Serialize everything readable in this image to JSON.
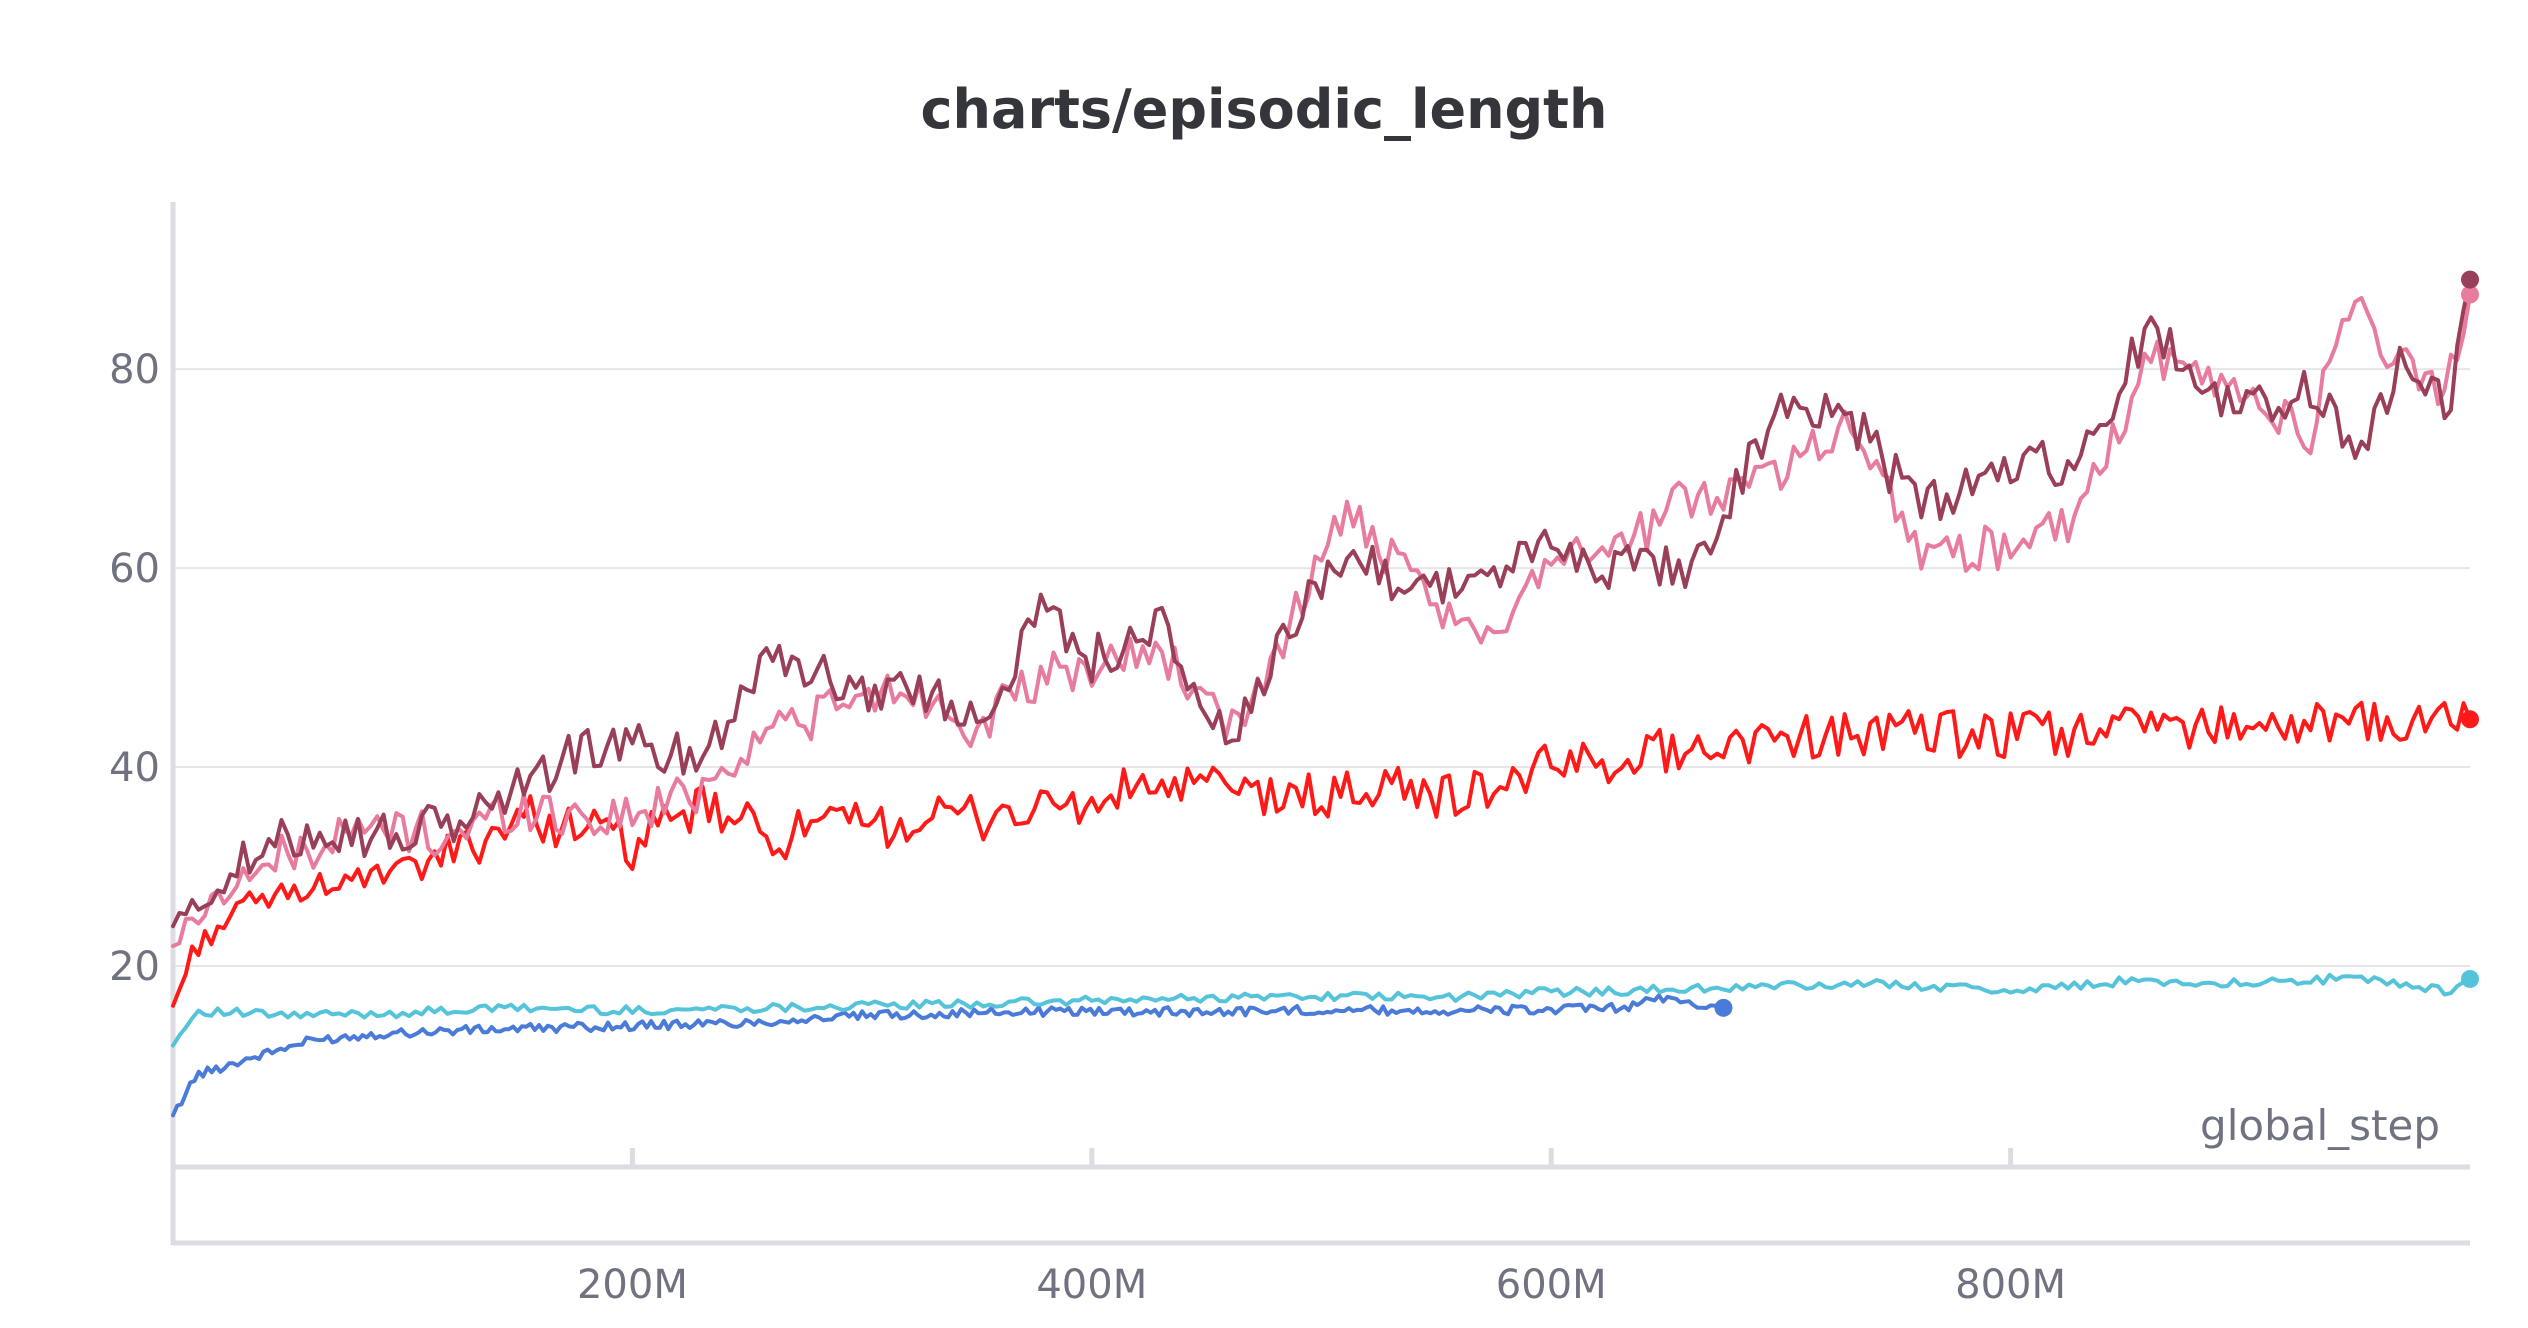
{
  "chart_data": {
    "type": "line",
    "title": "charts/episodic_length",
    "xlabel": "global_step",
    "ylabel": "",
    "xlim": [
      0,
      1000000000
    ],
    "ylim": [
      0,
      97
    ],
    "x_ticks": [
      {
        "value": 200000000,
        "label": "200M"
      },
      {
        "value": 400000000,
        "label": "400M"
      },
      {
        "value": 600000000,
        "label": "600M"
      },
      {
        "value": 800000000,
        "label": "800M"
      }
    ],
    "y_ticks": [
      {
        "value": 20,
        "label": "20"
      },
      {
        "value": 40,
        "label": "40"
      },
      {
        "value": 60,
        "label": "60"
      },
      {
        "value": 80,
        "label": "80"
      }
    ],
    "grid": true,
    "legend": "none",
    "series": [
      {
        "color": "#4a7bd9",
        "x": [
          0,
          10000000,
          30000000,
          60000000,
          90000000,
          120000000,
          150000000,
          200000000,
          250000000,
          300000000,
          350000000,
          400000000,
          450000000,
          500000000,
          550000000,
          600000000,
          630000000,
          650000000,
          665000000,
          675000000
        ],
        "y": [
          5,
          9,
          10.5,
          12.5,
          13.2,
          13.5,
          13.7,
          14,
          14.3,
          15,
          15.3,
          15.5,
          15.4,
          15.6,
          15.5,
          15.6,
          15.8,
          16.8,
          16.1,
          15.8
        ]
      },
      {
        "color": "#55c3d9",
        "x": [
          0,
          10000000,
          50000000,
          100000000,
          150000000,
          200000000,
          250000000,
          300000000,
          350000000,
          400000000,
          450000000,
          500000000,
          550000000,
          600000000,
          650000000,
          700000000,
          750000000,
          800000000,
          850000000,
          900000000,
          950000000,
          990000000,
          1000000000
        ],
        "y": [
          12,
          15.5,
          15,
          15.3,
          15.8,
          15.5,
          15.8,
          16,
          16.2,
          16.5,
          16.8,
          17,
          16.8,
          17.4,
          17.6,
          18,
          18.2,
          17.5,
          18.5,
          18.3,
          18.8,
          17.5,
          18.7
        ]
      },
      {
        "color": "#ff1a1a",
        "x": [
          0,
          10000000,
          30000000,
          60000000,
          90000000,
          120000000,
          150000000,
          180000000,
          200000000,
          230000000,
          260000000,
          290000000,
          320000000,
          350000000,
          380000000,
          400000000,
          420000000,
          450000000,
          480000000,
          500000000,
          530000000,
          560000000,
          600000000,
          630000000,
          660000000,
          700000000,
          750000000,
          800000000,
          850000000,
          900000000,
          950000000,
          990000000,
          1000000000
        ],
        "y": [
          16,
          22,
          26,
          28,
          29,
          31,
          35,
          34,
          32,
          36,
          33,
          34,
          34.5,
          35,
          36,
          36,
          38,
          38,
          37,
          37,
          38,
          37,
          40,
          41,
          42,
          43,
          43.5,
          43,
          44,
          44.5,
          44,
          45,
          44.8
        ]
      },
      {
        "color": "#e87c9e",
        "x": [
          0,
          10000000,
          30000000,
          60000000,
          90000000,
          120000000,
          150000000,
          180000000,
          200000000,
          230000000,
          260000000,
          290000000,
          320000000,
          350000000,
          380000000,
          400000000,
          430000000,
          460000000,
          490000000,
          510000000,
          540000000,
          570000000,
          600000000,
          630000000,
          660000000,
          700000000,
          730000000,
          760000000,
          800000000,
          830000000,
          860000000,
          900000000,
          930000000,
          950000000,
          970000000,
          990000000,
          1000000000
        ],
        "y": [
          22,
          25,
          29,
          32,
          34,
          33,
          36,
          35,
          35,
          38,
          44,
          46,
          48,
          44,
          49,
          50,
          52,
          43,
          56,
          66,
          58,
          52,
          62,
          62,
          67,
          70,
          75,
          62,
          62,
          65,
          81,
          78,
          73,
          88,
          80,
          78,
          87.5
        ]
      },
      {
        "color": "#9a3f58",
        "x": [
          0,
          10000000,
          30000000,
          60000000,
          90000000,
          120000000,
          150000000,
          180000000,
          200000000,
          230000000,
          260000000,
          290000000,
          320000000,
          350000000,
          380000000,
          400000000,
          430000000,
          460000000,
          490000000,
          510000000,
          540000000,
          570000000,
          600000000,
          630000000,
          660000000,
          700000000,
          730000000,
          760000000,
          800000000,
          830000000,
          860000000,
          900000000,
          930000000,
          950000000,
          970000000,
          990000000,
          1000000000
        ],
        "y": [
          24,
          26,
          30,
          34,
          33,
          34,
          38,
          42,
          42,
          41,
          52,
          48,
          48,
          45,
          56,
          51,
          54,
          42,
          55,
          62,
          58,
          59,
          62,
          60,
          60,
          76,
          75,
          66,
          70,
          71,
          84,
          76,
          78,
          72,
          80,
          76,
          89
        ]
      }
    ]
  }
}
